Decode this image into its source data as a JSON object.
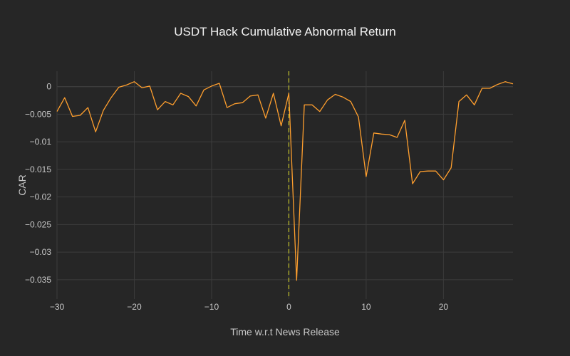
{
  "chart_data": {
    "type": "line",
    "title": "USDT Hack Cumulative Abnormal Return",
    "xlabel": "Time w.r.t News Release",
    "ylabel": "CAR",
    "xlim": [
      -30,
      29
    ],
    "ylim": [
      -0.0385,
      0.0028
    ],
    "grid": true,
    "x_ticks": [
      -30,
      -20,
      -10,
      0,
      10,
      20
    ],
    "x_tick_labels": [
      "−30",
      "−20",
      "−10",
      "0",
      "10",
      "20"
    ],
    "y_ticks": [
      0,
      -0.005,
      -0.01,
      -0.015,
      -0.02,
      -0.025,
      -0.03,
      -0.035
    ],
    "y_tick_labels": [
      "0",
      "−0.005",
      "−0.01",
      "−0.015",
      "−0.02",
      "−0.025",
      "−0.03",
      "−0.035"
    ],
    "series": [
      {
        "color": "#ff9f2e",
        "x": [
          -30,
          -29,
          -28,
          -27,
          -26,
          -25,
          -24,
          -23,
          -22,
          -21,
          -20,
          -19,
          -18,
          -17,
          -16,
          -15,
          -14,
          -13,
          -12,
          -11,
          -10,
          -9,
          -8,
          -7,
          -6,
          -5,
          -4,
          -3,
          -2,
          -1,
          0,
          1,
          2,
          3,
          4,
          5,
          6,
          7,
          8,
          9,
          10,
          11,
          12,
          13,
          14,
          15,
          16,
          17,
          18,
          19,
          20,
          21,
          22,
          23,
          24,
          25,
          26,
          27,
          28,
          29
        ],
        "y": [
          -0.0045,
          -0.002,
          -0.0054,
          -0.0052,
          -0.0038,
          -0.0082,
          -0.0043,
          -0.002,
          -0.0001,
          0.0003,
          0.0009,
          -0.0002,
          0.0001,
          -0.0042,
          -0.0027,
          -0.0033,
          -0.0012,
          -0.0018,
          -0.0035,
          -0.0006,
          0.0001,
          0.0006,
          -0.0038,
          -0.0031,
          -0.0029,
          -0.0017,
          -0.0015,
          -0.0057,
          -0.0012,
          -0.0071,
          -0.0012,
          -0.0351,
          -0.0033,
          -0.0033,
          -0.0045,
          -0.0024,
          -0.0014,
          -0.0019,
          -0.0027,
          -0.0055,
          -0.0163,
          -0.0084,
          -0.0086,
          -0.0087,
          -0.0092,
          -0.0061,
          -0.0176,
          -0.0154,
          -0.0153,
          -0.0153,
          -0.0169,
          -0.0147,
          -0.0027,
          -0.0015,
          -0.0033,
          -0.0003,
          -0.0003,
          0.0004,
          0.0009,
          0.0005
        ]
      }
    ],
    "annotations": [
      {
        "type": "vline",
        "x": 0,
        "color": "#e6e62e",
        "dash": true
      }
    ]
  }
}
